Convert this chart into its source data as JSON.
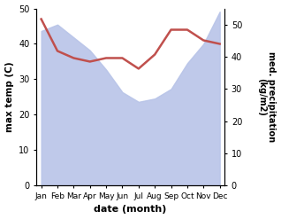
{
  "months": [
    "Jan",
    "Feb",
    "Mar",
    "Apr",
    "May",
    "Jun",
    "Jul",
    "Aug",
    "Sep",
    "Oct",
    "Nov",
    "Dec"
  ],
  "month_indices": [
    0,
    1,
    2,
    3,
    4,
    5,
    6,
    7,
    8,
    9,
    10,
    11
  ],
  "precipitation": [
    48,
    50,
    46,
    42,
    36,
    29,
    26,
    27,
    30,
    38,
    44,
    54
  ],
  "temperature": [
    47,
    38,
    36,
    35,
    36,
    36,
    33,
    37,
    44,
    44,
    41,
    40
  ],
  "temp_color": "#c0504d",
  "precip_color_fill": "#b8c4e8",
  "background_color": "#ffffff",
  "ylim_left": [
    0,
    50
  ],
  "ylim_right": [
    0,
    55
  ],
  "yticks_left": [
    0,
    10,
    20,
    30,
    40,
    50
  ],
  "yticks_right": [
    0,
    10,
    20,
    30,
    40,
    50
  ],
  "xlabel": "date (month)",
  "ylabel_left": "max temp (C)",
  "ylabel_right": "med. precipitation\n(kg/m2)",
  "title": ""
}
